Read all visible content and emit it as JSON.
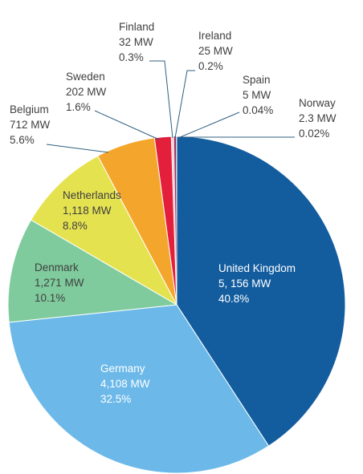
{
  "chart_data": {
    "type": "pie",
    "title": "",
    "unit": "MW",
    "slices": [
      {
        "name": "United Kingdom",
        "value": 5156,
        "value_label": "5, 156 MW",
        "percent_label": "40.8%",
        "color": "#135d9f",
        "label_color": "#ffffff"
      },
      {
        "name": "Germany",
        "value": 4108,
        "value_label": "4,108 MW",
        "percent_label": "32.5%",
        "color": "#6cb9e9",
        "label_color": "#ffffff"
      },
      {
        "name": "Denmark",
        "value": 1271,
        "value_label": "1,271 MW",
        "percent_label": "10.1%",
        "color": "#7fcb9d",
        "label_color": "#3f3f3f"
      },
      {
        "name": "Netherlands",
        "value": 1118,
        "value_label": "1,118 MW",
        "percent_label": "8.8%",
        "color": "#e5e250",
        "label_color": "#3f3f3f"
      },
      {
        "name": "Belgium",
        "value": 712,
        "value_label": "712 MW",
        "percent_label": "5.6%",
        "color": "#f4a52b",
        "label_color": "#3f3f3f"
      },
      {
        "name": "Sweden",
        "value": 202,
        "value_label": "202 MW",
        "percent_label": "1.6%",
        "color": "#e31f3c",
        "label_color": "#3f3f3f"
      },
      {
        "name": "Finland",
        "value": 32,
        "value_label": "32 MW",
        "percent_label": "0.3%",
        "color": "#f7d8d8",
        "label_color": "#3f3f3f"
      },
      {
        "name": "Ireland",
        "value": 25,
        "value_label": "25 MW",
        "percent_label": "0.2%",
        "color": "#9a2d63",
        "label_color": "#3f3f3f"
      },
      {
        "name": "Spain",
        "value": 5,
        "value_label": "5 MW",
        "percent_label": "0.04%",
        "color": "#2c5a6a",
        "label_color": "#3f3f3f"
      },
      {
        "name": "Norway",
        "value": 2.3,
        "value_label": "2.3 MW",
        "percent_label": "0.02%",
        "color": "#1d3d5f",
        "label_color": "#3f3f3f"
      }
    ]
  }
}
